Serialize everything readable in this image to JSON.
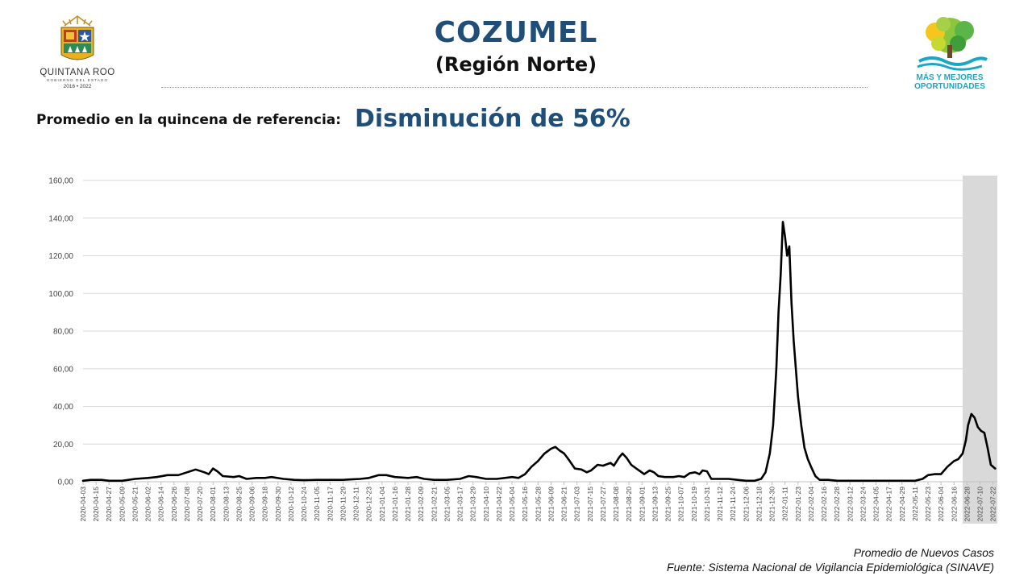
{
  "header": {
    "title": "COZUMEL",
    "subtitle": "(Región Norte)",
    "left_logo": {
      "name": "QUINTANA ROO",
      "sub": "GOBIERNO DEL ESTADO",
      "years": "2016 • 2022"
    },
    "right_logo": {
      "line1": "MÁS Y MEJORES",
      "line2": "OPORTUNIDADES"
    }
  },
  "summary": {
    "label": "Promedio en la quincena de referencia:",
    "value": "Disminución de 56%"
  },
  "footer": {
    "series_label": "Promedio de Nuevos Casos",
    "source": "Fuente: Sistema Nacional de Vigilancia Epidemiológica (SINAVE)"
  },
  "colors": {
    "title": "#1f4e79",
    "line": "#000000",
    "grid": "#d9d9d9",
    "highlight": "#d9d9d9"
  },
  "chart_data": {
    "type": "line",
    "x_start": "2020-04-03",
    "x_end": "2022-07-26",
    "x_tick_labels": [
      "2020-04-03",
      "2020-04-15",
      "2020-04-27",
      "2020-05-09",
      "2020-05-21",
      "2020-06-02",
      "2020-06-14",
      "2020-06-26",
      "2020-07-08",
      "2020-07-20",
      "2020-08-01",
      "2020-08-13",
      "2020-08-25",
      "2020-09-06",
      "2020-09-18",
      "2020-09-30",
      "2020-10-12",
      "2020-10-24",
      "2020-11-05",
      "2020-11-17",
      "2020-11-29",
      "2020-12-11",
      "2020-12-23",
      "2021-01-04",
      "2021-01-16",
      "2021-01-28",
      "2021-02-09",
      "2021-02-21",
      "2021-03-05",
      "2021-03-17",
      "2021-03-29",
      "2021-04-10",
      "2021-04-22",
      "2021-05-04",
      "2021-05-16",
      "2021-05-28",
      "2021-06-09",
      "2021-06-21",
      "2021-07-03",
      "2021-07-15",
      "2021-07-27",
      "2021-08-08",
      "2021-08-20",
      "2021-09-01",
      "2021-09-13",
      "2021-09-25",
      "2021-10-07",
      "2021-10-19",
      "2021-10-31",
      "2021-11-12",
      "2021-11-24",
      "2021-12-06",
      "2021-12-18",
      "2021-12-30",
      "2022-01-11",
      "2022-01-23",
      "2022-02-04",
      "2022-02-16",
      "2022-02-28",
      "2022-03-12",
      "2022-03-24",
      "2022-04-05",
      "2022-04-17",
      "2022-04-29",
      "2022-05-11",
      "2022-05-23",
      "2022-06-04",
      "2022-06-16",
      "2022-06-28",
      "2022-07-10",
      "2022-07-22"
    ],
    "y_tick_labels": [
      "0,00",
      "20,00",
      "40,00",
      "60,00",
      "80,00",
      "100,00",
      "120,00",
      "140,00",
      "160,00"
    ],
    "ylim": [
      0,
      160
    ],
    "y_ticks": [
      0,
      20,
      40,
      60,
      80,
      100,
      120,
      140,
      160
    ],
    "grid": "horizontal",
    "highlight_range": [
      "2022-06-24",
      "2022-07-26"
    ],
    "series": [
      {
        "points": [
          [
            "2020-04-03",
            0.5
          ],
          [
            "2020-04-10",
            1
          ],
          [
            "2020-04-20",
            1
          ],
          [
            "2020-04-27",
            0.5
          ],
          [
            "2020-05-09",
            0.5
          ],
          [
            "2020-05-21",
            1.5
          ],
          [
            "2020-06-02",
            2
          ],
          [
            "2020-06-10",
            2.5
          ],
          [
            "2020-06-20",
            3.5
          ],
          [
            "2020-06-30",
            3.5
          ],
          [
            "2020-07-08",
            5
          ],
          [
            "2020-07-16",
            6.5
          ],
          [
            "2020-07-24",
            5
          ],
          [
            "2020-07-28",
            4
          ],
          [
            "2020-08-01",
            7
          ],
          [
            "2020-08-05",
            5.5
          ],
          [
            "2020-08-10",
            3
          ],
          [
            "2020-08-20",
            2.5
          ],
          [
            "2020-08-25",
            3
          ],
          [
            "2020-09-01",
            1.5
          ],
          [
            "2020-09-10",
            2
          ],
          [
            "2020-09-18",
            2
          ],
          [
            "2020-09-24",
            2.5
          ],
          [
            "2020-10-05",
            1.5
          ],
          [
            "2020-10-15",
            1
          ],
          [
            "2020-10-24",
            0.8
          ],
          [
            "2020-11-05",
            1
          ],
          [
            "2020-11-17",
            1
          ],
          [
            "2020-11-29",
            1
          ],
          [
            "2020-12-05",
            1.2
          ],
          [
            "2020-12-15",
            1.5
          ],
          [
            "2020-12-23",
            2
          ],
          [
            "2021-01-01",
            3.5
          ],
          [
            "2021-01-08",
            3.5
          ],
          [
            "2021-01-16",
            2.5
          ],
          [
            "2021-01-28",
            2
          ],
          [
            "2021-02-05",
            2.5
          ],
          [
            "2021-02-12",
            1.5
          ],
          [
            "2021-02-21",
            1
          ],
          [
            "2021-03-05",
            1
          ],
          [
            "2021-03-17",
            1.5
          ],
          [
            "2021-03-25",
            3
          ],
          [
            "2021-04-01",
            2.5
          ],
          [
            "2021-04-10",
            1.5
          ],
          [
            "2021-04-20",
            1.5
          ],
          [
            "2021-05-04",
            2.5
          ],
          [
            "2021-05-10",
            2
          ],
          [
            "2021-05-16",
            4
          ],
          [
            "2021-05-22",
            8
          ],
          [
            "2021-05-28",
            11
          ],
          [
            "2021-06-03",
            15
          ],
          [
            "2021-06-09",
            17.5
          ],
          [
            "2021-06-13",
            18.5
          ],
          [
            "2021-06-17",
            16.5
          ],
          [
            "2021-06-21",
            15
          ],
          [
            "2021-06-25",
            12
          ],
          [
            "2021-07-01",
            7
          ],
          [
            "2021-07-07",
            6.5
          ],
          [
            "2021-07-12",
            5
          ],
          [
            "2021-07-16",
            6
          ],
          [
            "2021-07-22",
            9
          ],
          [
            "2021-07-27",
            8.5
          ],
          [
            "2021-08-03",
            10
          ],
          [
            "2021-08-06",
            8.5
          ],
          [
            "2021-08-11",
            13
          ],
          [
            "2021-08-14",
            15
          ],
          [
            "2021-08-18",
            12.5
          ],
          [
            "2021-08-22",
            9
          ],
          [
            "2021-08-28",
            6.5
          ],
          [
            "2021-09-03",
            4
          ],
          [
            "2021-09-08",
            6
          ],
          [
            "2021-09-12",
            5
          ],
          [
            "2021-09-16",
            3
          ],
          [
            "2021-09-22",
            2.5
          ],
          [
            "2021-09-30",
            2.5
          ],
          [
            "2021-10-05",
            3
          ],
          [
            "2021-10-10",
            2.5
          ],
          [
            "2021-10-15",
            4.5
          ],
          [
            "2021-10-20",
            5
          ],
          [
            "2021-10-24",
            4
          ],
          [
            "2021-10-27",
            6
          ],
          [
            "2021-10-31",
            5.5
          ],
          [
            "2021-11-04",
            1.5
          ],
          [
            "2021-11-12",
            1.5
          ],
          [
            "2021-11-20",
            1.5
          ],
          [
            "2021-11-28",
            1
          ],
          [
            "2021-12-06",
            0.5
          ],
          [
            "2021-12-14",
            0.5
          ],
          [
            "2021-12-20",
            1.5
          ],
          [
            "2021-12-24",
            5
          ],
          [
            "2021-12-28",
            15
          ],
          [
            "2021-12-31",
            30
          ],
          [
            "2022-01-03",
            60
          ],
          [
            "2022-01-05",
            90
          ],
          [
            "2022-01-07",
            110
          ],
          [
            "2022-01-09",
            138
          ],
          [
            "2022-01-11",
            130
          ],
          [
            "2022-01-13",
            120
          ],
          [
            "2022-01-15",
            125
          ],
          [
            "2022-01-17",
            95
          ],
          [
            "2022-01-19",
            75
          ],
          [
            "2022-01-21",
            60
          ],
          [
            "2022-01-23",
            45
          ],
          [
            "2022-01-26",
            30
          ],
          [
            "2022-01-29",
            18
          ],
          [
            "2022-02-01",
            12
          ],
          [
            "2022-02-04",
            8
          ],
          [
            "2022-02-08",
            3
          ],
          [
            "2022-02-12",
            1
          ],
          [
            "2022-02-20",
            1
          ],
          [
            "2022-02-28",
            0.5
          ],
          [
            "2022-03-12",
            0.5
          ],
          [
            "2022-03-24",
            0.5
          ],
          [
            "2022-04-05",
            0.5
          ],
          [
            "2022-04-17",
            0.5
          ],
          [
            "2022-04-29",
            0.5
          ],
          [
            "2022-05-11",
            0.5
          ],
          [
            "2022-05-18",
            1.5
          ],
          [
            "2022-05-23",
            3.5
          ],
          [
            "2022-05-29",
            4
          ],
          [
            "2022-06-04",
            4
          ],
          [
            "2022-06-10",
            8
          ],
          [
            "2022-06-16",
            11
          ],
          [
            "2022-06-20",
            12
          ],
          [
            "2022-06-24",
            15
          ],
          [
            "2022-06-27",
            22
          ],
          [
            "2022-06-29",
            30
          ],
          [
            "2022-07-02",
            36
          ],
          [
            "2022-07-05",
            34
          ],
          [
            "2022-07-08",
            29
          ],
          [
            "2022-07-11",
            27
          ],
          [
            "2022-07-14",
            26
          ],
          [
            "2022-07-17",
            18
          ],
          [
            "2022-07-20",
            9
          ],
          [
            "2022-07-24",
            7
          ]
        ]
      }
    ]
  }
}
